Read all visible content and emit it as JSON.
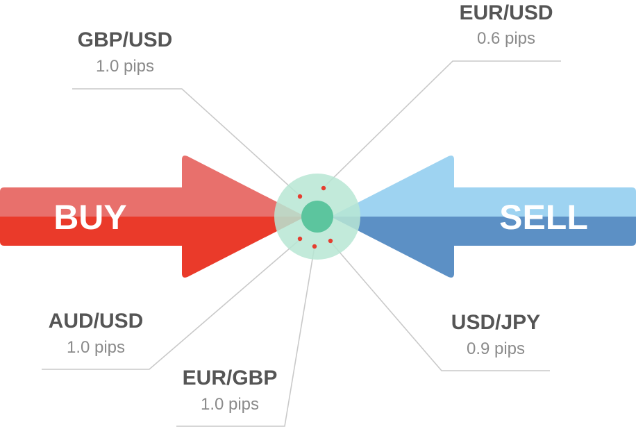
{
  "arrows": {
    "buy": {
      "label": "BUY",
      "color_light": "#e8706c",
      "color_dark": "#ea3a2a"
    },
    "sell": {
      "label": "SELL",
      "color_light": "#9ed3f1",
      "color_dark": "#5c90c5"
    }
  },
  "center": {
    "ring_color": "#b7e6d3",
    "core_color": "#5cc59e",
    "dot_color": "#e53d2f"
  },
  "spreads": [
    {
      "id": "gbpusd",
      "pair": "GBP/USD",
      "value": "1.0 pips"
    },
    {
      "id": "eurusd",
      "pair": "EUR/USD",
      "value": "0.6 pips"
    },
    {
      "id": "audusd",
      "pair": "AUD/USD",
      "value": "1.0 pips"
    },
    {
      "id": "eurgbp",
      "pair": "EUR/GBP",
      "value": "1.0 pips"
    },
    {
      "id": "usdjpy",
      "pair": "USD/JPY",
      "value": "0.9 pips"
    }
  ]
}
